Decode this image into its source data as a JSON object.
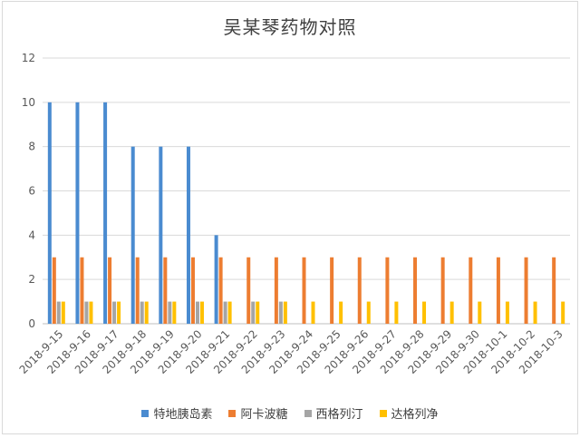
{
  "chart_data": {
    "type": "bar",
    "title": "吴某琴药物对照",
    "xlabel": "",
    "ylabel": "",
    "ylim": [
      0,
      12
    ],
    "yticks": [
      0,
      2,
      4,
      6,
      8,
      10,
      12
    ],
    "grid": true,
    "legend_position": "bottom",
    "categories": [
      "2018-9-15",
      "2018-9-16",
      "2018-9-17",
      "2018-9-18",
      "2018-9-19",
      "2018-9-20",
      "2018-9-21",
      "2018-9-22",
      "2018-9-23",
      "2018-9-24",
      "2018-9-25",
      "2018-9-26",
      "2018-9-27",
      "2018-9-28",
      "2018-9-29",
      "2018-9-30",
      "2018-10-1",
      "2018-10-2",
      "2018-10-3"
    ],
    "series": [
      {
        "name": "特地胰岛素",
        "color": "#4a8bd0",
        "values": [
          10,
          10,
          10,
          8,
          8,
          8,
          4,
          0,
          0,
          0,
          0,
          0,
          0,
          0,
          0,
          0,
          0,
          0,
          0
        ]
      },
      {
        "name": "阿卡波糖",
        "color": "#ed7d31",
        "values": [
          3,
          3,
          3,
          3,
          3,
          3,
          3,
          3,
          3,
          3,
          3,
          3,
          3,
          3,
          3,
          3,
          3,
          3,
          3
        ]
      },
      {
        "name": "西格列汀",
        "color": "#a5a5a5",
        "values": [
          1,
          1,
          1,
          1,
          1,
          1,
          1,
          1,
          1,
          0,
          0,
          0,
          0,
          0,
          0,
          0,
          0,
          0,
          0
        ]
      },
      {
        "name": "达格列净",
        "color": "#ffc000",
        "values": [
          1,
          1,
          1,
          1,
          1,
          1,
          1,
          1,
          1,
          1,
          1,
          1,
          1,
          1,
          1,
          1,
          1,
          1,
          1
        ]
      }
    ]
  }
}
